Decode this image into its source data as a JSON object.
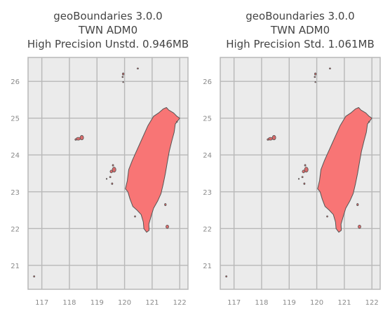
{
  "chart_data": [
    {
      "type": "map",
      "title_lines": [
        "geoBoundaries 3.0.0",
        "TWN ADM0",
        "High Precision Unstd. 0.946MB"
      ],
      "xlim": [
        116.5,
        122.3
      ],
      "ylim": [
        20.35,
        26.65
      ],
      "xticks": [
        117,
        118,
        119,
        120,
        121,
        122
      ],
      "yticks": [
        21,
        22,
        23,
        24,
        25,
        26
      ],
      "grid": true,
      "fill_color": "#f87575",
      "edge_color": "#555555",
      "background_color": "#ebebeb"
    },
    {
      "type": "map",
      "title_lines": [
        "geoBoundaries 3.0.0",
        "TWN ADM0",
        "High Precision Std. 1.061MB"
      ],
      "xlim": [
        116.5,
        122.3
      ],
      "ylim": [
        20.35,
        26.65
      ],
      "xticks": [
        117,
        118,
        119,
        120,
        121,
        122
      ],
      "yticks": [
        21,
        22,
        23,
        24,
        25,
        26
      ],
      "grid": true,
      "fill_color": "#f87575",
      "edge_color": "#555555",
      "background_color": "#ebebeb"
    }
  ]
}
